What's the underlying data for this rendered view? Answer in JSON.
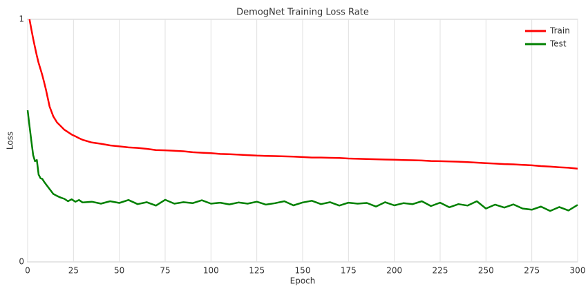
{
  "chart_data": {
    "type": "line",
    "title": "DemogNet Training Loss Rate",
    "x_label": "Epoch",
    "y_label": "Loss",
    "x": [
      0,
      1,
      2,
      3,
      4,
      5,
      6,
      7,
      8,
      9,
      10,
      12,
      14,
      16,
      18,
      20,
      22,
      24,
      26,
      28,
      30,
      35,
      40,
      45,
      50,
      55,
      60,
      65,
      70,
      75,
      80,
      85,
      90,
      95,
      100,
      105,
      110,
      115,
      120,
      125,
      130,
      135,
      140,
      145,
      150,
      155,
      160,
      165,
      170,
      175,
      180,
      185,
      190,
      195,
      200,
      205,
      210,
      215,
      220,
      225,
      230,
      235,
      240,
      245,
      250,
      255,
      260,
      265,
      270,
      275,
      280,
      285,
      290,
      295,
      300
    ],
    "series": [
      {
        "name": "Train",
        "color": "#ff0000",
        "values": [
          null,
          1.0,
          0.96,
          0.92,
          0.885,
          0.85,
          0.82,
          0.795,
          0.77,
          0.74,
          0.71,
          0.64,
          0.6,
          0.575,
          0.56,
          0.545,
          0.535,
          0.525,
          0.518,
          0.51,
          0.503,
          0.492,
          0.487,
          0.48,
          0.476,
          0.472,
          0.47,
          0.466,
          0.461,
          0.46,
          0.458,
          0.456,
          0.452,
          0.45,
          0.448,
          0.445,
          0.444,
          0.442,
          0.44,
          0.438,
          0.437,
          0.436,
          0.435,
          0.434,
          0.432,
          0.43,
          0.43,
          0.429,
          0.428,
          0.426,
          0.425,
          0.424,
          0.423,
          0.422,
          0.421,
          0.42,
          0.419,
          0.418,
          0.416,
          0.415,
          0.414,
          0.413,
          0.411,
          0.409,
          0.407,
          0.405,
          0.403,
          0.402,
          0.4,
          0.398,
          0.395,
          0.393,
          0.39,
          0.388,
          0.384
        ]
      },
      {
        "name": "Test",
        "color": "#008000",
        "values": [
          0.625,
          0.56,
          0.5,
          0.44,
          0.415,
          0.42,
          0.36,
          0.345,
          0.342,
          0.33,
          0.32,
          0.3,
          0.28,
          0.272,
          0.265,
          0.26,
          0.25,
          0.258,
          0.248,
          0.255,
          0.245,
          0.248,
          0.24,
          0.25,
          0.243,
          0.255,
          0.238,
          0.246,
          0.232,
          0.256,
          0.24,
          0.246,
          0.242,
          0.254,
          0.24,
          0.244,
          0.237,
          0.245,
          0.24,
          0.248,
          0.236,
          0.242,
          0.25,
          0.233,
          0.245,
          0.252,
          0.238,
          0.246,
          0.232,
          0.244,
          0.24,
          0.243,
          0.228,
          0.246,
          0.233,
          0.242,
          0.238,
          0.25,
          0.23,
          0.244,
          0.225,
          0.238,
          0.232,
          0.25,
          0.22,
          0.236,
          0.224,
          0.237,
          0.22,
          0.215,
          0.228,
          0.21,
          0.226,
          0.212,
          0.235
        ]
      }
    ],
    "xlim": [
      0,
      300
    ],
    "xticks": [
      0,
      25,
      50,
      75,
      100,
      125,
      150,
      175,
      200,
      225,
      250,
      275,
      300
    ],
    "ylim": [
      0,
      1
    ],
    "yticks": [
      0,
      1
    ],
    "grid": "x",
    "legend": "upper right"
  }
}
